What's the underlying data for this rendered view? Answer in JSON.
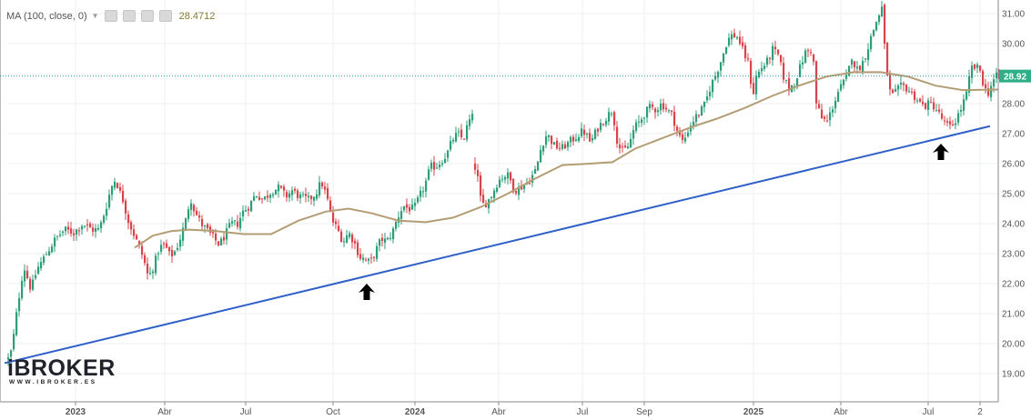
{
  "indicator": {
    "name": "MA (100, close, 0)",
    "value": "28.4712"
  },
  "logo": {
    "main": "iBROKER",
    "sub": "WWW.IBROKER.ES"
  },
  "colors": {
    "up": "#2e9e7a",
    "down": "#d9444b",
    "ma": "#b49d74",
    "trendline": "#2f5fc8",
    "price_line": "#2a9d8f",
    "price_label_bg": "#2fae87",
    "grid": "#eef0f2",
    "axis_text": "#555555",
    "arrow": "#000000"
  },
  "chart_data": {
    "type": "candlestick",
    "ylim": [
      18.4,
      31.4
    ],
    "y_ticks": [
      "19.00",
      "20.00",
      "21.00",
      "22.00",
      "23.00",
      "24.00",
      "25.00",
      "26.00",
      "27.00",
      "28.00",
      "29.00",
      "30.00",
      "31.00"
    ],
    "x_ticks": [
      "2023",
      "Abr",
      "Jul",
      "Oct",
      "2024",
      "Abr",
      "Jul",
      "Sep",
      "2025",
      "Abr",
      "Jul",
      "2"
    ],
    "last_price": "28.92",
    "series": [
      {
        "name": "Price",
        "type": "candlestick",
        "path": [
          [
            0,
            19.5
          ],
          [
            4,
            19.8
          ],
          [
            10,
            21.2
          ],
          [
            17,
            22.6
          ],
          [
            25,
            21.8
          ],
          [
            32,
            22.5
          ],
          [
            42,
            23.0
          ],
          [
            52,
            23.5
          ],
          [
            62,
            23.8
          ],
          [
            72,
            23.7
          ],
          [
            82,
            24.0
          ],
          [
            92,
            23.8
          ],
          [
            100,
            23.8
          ],
          [
            108,
            24.6
          ],
          [
            113,
            25.2
          ],
          [
            118,
            25.5
          ],
          [
            122,
            25.1
          ],
          [
            126,
            24.8
          ],
          [
            132,
            24.1
          ],
          [
            140,
            23.5
          ],
          [
            148,
            22.9
          ],
          [
            154,
            22.2
          ],
          [
            160,
            22.6
          ],
          [
            166,
            23.2
          ],
          [
            172,
            23.3
          ],
          [
            178,
            22.9
          ],
          [
            184,
            23.1
          ],
          [
            190,
            23.6
          ],
          [
            196,
            24.2
          ],
          [
            200,
            24.9
          ],
          [
            205,
            24.4
          ],
          [
            212,
            24.0
          ],
          [
            218,
            23.8
          ],
          [
            226,
            23.5
          ],
          [
            232,
            23.3
          ],
          [
            238,
            23.6
          ],
          [
            245,
            24.0
          ],
          [
            252,
            24.0
          ],
          [
            258,
            24.4
          ],
          [
            265,
            24.6
          ],
          [
            272,
            25.0
          ],
          [
            280,
            24.8
          ],
          [
            290,
            25.1
          ],
          [
            298,
            25.2
          ],
          [
            305,
            24.9
          ],
          [
            312,
            25.1
          ],
          [
            320,
            24.9
          ],
          [
            330,
            24.8
          ],
          [
            338,
            25.0
          ],
          [
            344,
            25.4
          ],
          [
            350,
            24.9
          ],
          [
            356,
            24.1
          ],
          [
            362,
            23.8
          ],
          [
            368,
            23.4
          ],
          [
            374,
            23.7
          ],
          [
            380,
            23.4
          ],
          [
            386,
            22.9
          ],
          [
            392,
            22.8
          ],
          [
            398,
            22.7
          ],
          [
            404,
            23.1
          ],
          [
            410,
            23.5
          ],
          [
            416,
            23.4
          ],
          [
            422,
            23.7
          ],
          [
            428,
            24.2
          ],
          [
            434,
            24.6
          ],
          [
            440,
            24.5
          ],
          [
            446,
            24.5
          ],
          [
            452,
            24.9
          ],
          [
            458,
            25.3
          ],
          [
            464,
            25.9
          ],
          [
            470,
            25.9
          ],
          [
            476,
            26.1
          ],
          [
            482,
            26.3
          ],
          [
            488,
            26.8
          ],
          [
            494,
            27.0
          ],
          [
            500,
            26.8
          ],
          [
            506,
            27.4
          ],
          [
            512,
            27.6
          ],
          [
            512,
            26.0
          ],
          [
            516,
            25.5
          ],
          [
            520,
            24.6
          ],
          [
            526,
            24.7
          ],
          [
            532,
            25.0
          ],
          [
            538,
            25.4
          ],
          [
            544,
            25.6
          ],
          [
            550,
            25.6
          ],
          [
            556,
            25.1
          ],
          [
            562,
            25.2
          ],
          [
            568,
            25.3
          ],
          [
            574,
            25.5
          ],
          [
            580,
            25.8
          ],
          [
            586,
            26.6
          ],
          [
            592,
            27.0
          ],
          [
            600,
            26.6
          ],
          [
            608,
            26.5
          ],
          [
            616,
            26.7
          ],
          [
            624,
            26.9
          ],
          [
            632,
            27.1
          ],
          [
            640,
            26.7
          ],
          [
            648,
            27.2
          ],
          [
            656,
            27.5
          ],
          [
            664,
            27.8
          ],
          [
            670,
            26.6
          ],
          [
            676,
            26.4
          ],
          [
            682,
            26.6
          ],
          [
            688,
            27.2
          ],
          [
            694,
            27.4
          ],
          [
            700,
            27.7
          ],
          [
            706,
            27.9
          ],
          [
            712,
            27.8
          ],
          [
            718,
            28.0
          ],
          [
            724,
            27.8
          ],
          [
            730,
            27.6
          ],
          [
            736,
            27.0
          ],
          [
            742,
            26.7
          ],
          [
            748,
            27.2
          ],
          [
            754,
            27.5
          ],
          [
            760,
            27.7
          ],
          [
            766,
            28.0
          ],
          [
            772,
            28.6
          ],
          [
            778,
            29.0
          ],
          [
            784,
            29.5
          ],
          [
            790,
            30.1
          ],
          [
            796,
            30.3
          ],
          [
            802,
            30.2
          ],
          [
            808,
            29.7
          ],
          [
            814,
            29.3
          ],
          [
            818,
            28.2
          ],
          [
            822,
            28.9
          ],
          [
            828,
            29.2
          ],
          [
            834,
            29.4
          ],
          [
            840,
            29.8
          ],
          [
            846,
            29.6
          ],
          [
            852,
            28.9
          ],
          [
            858,
            28.5
          ],
          [
            864,
            28.7
          ],
          [
            870,
            29.2
          ],
          [
            876,
            29.7
          ],
          [
            884,
            29.8
          ],
          [
            888,
            28.0
          ],
          [
            894,
            27.5
          ],
          [
            900,
            27.4
          ],
          [
            906,
            27.9
          ],
          [
            912,
            28.4
          ],
          [
            918,
            28.7
          ],
          [
            922,
            28.9
          ],
          [
            927,
            29.6
          ],
          [
            932,
            29.1
          ],
          [
            938,
            29.3
          ],
          [
            944,
            29.8
          ],
          [
            950,
            30.4
          ],
          [
            956,
            30.9
          ],
          [
            960,
            31.2
          ],
          [
            962,
            30.2
          ],
          [
            966,
            29.0
          ],
          [
            970,
            28.2
          ],
          [
            976,
            28.4
          ],
          [
            982,
            28.6
          ],
          [
            988,
            28.5
          ],
          [
            994,
            28.3
          ],
          [
            1000,
            28.1
          ],
          [
            1006,
            27.9
          ],
          [
            1012,
            28.0
          ],
          [
            1018,
            27.9
          ],
          [
            1024,
            27.6
          ],
          [
            1030,
            27.3
          ],
          [
            1036,
            27.2
          ],
          [
            1042,
            27.5
          ],
          [
            1048,
            27.9
          ],
          [
            1054,
            28.4
          ],
          [
            1058,
            29.2
          ],
          [
            1064,
            29.2
          ],
          [
            1068,
            29.1
          ],
          [
            1072,
            28.6
          ],
          [
            1076,
            28.3
          ],
          [
            1080,
            28.6
          ],
          [
            1085,
            28.9
          ],
          [
            1089,
            28.9
          ]
        ]
      }
    ],
    "moving_average": {
      "name": "MA (100, close, 0)",
      "path": [
        [
          140,
          23.2
        ],
        [
          160,
          23.6
        ],
        [
          180,
          23.75
        ],
        [
          200,
          23.8
        ],
        [
          230,
          23.75
        ],
        [
          260,
          23.65
        ],
        [
          290,
          23.65
        ],
        [
          320,
          24.1
        ],
        [
          350,
          24.4
        ],
        [
          375,
          24.5
        ],
        [
          400,
          24.35
        ],
        [
          430,
          24.1
        ],
        [
          460,
          24.05
        ],
        [
          490,
          24.2
        ],
        [
          520,
          24.55
        ],
        [
          550,
          25.0
        ],
        [
          580,
          25.5
        ],
        [
          610,
          25.95
        ],
        [
          640,
          26.0
        ],
        [
          665,
          26.05
        ],
        [
          690,
          26.5
        ],
        [
          720,
          26.85
        ],
        [
          750,
          27.2
        ],
        [
          780,
          27.5
        ],
        [
          810,
          27.85
        ],
        [
          840,
          28.25
        ],
        [
          870,
          28.6
        ],
        [
          900,
          28.9
        ],
        [
          930,
          29.05
        ],
        [
          960,
          29.05
        ],
        [
          990,
          28.9
        ],
        [
          1020,
          28.6
        ],
        [
          1050,
          28.45
        ],
        [
          1089,
          28.47
        ]
      ]
    },
    "trendline": {
      "from": [
        "2022",
        19.35
      ],
      "to": [
        "2025",
        27.25
      ]
    },
    "annotations": [
      "up-arrow-1",
      "up-arrow-2"
    ]
  }
}
